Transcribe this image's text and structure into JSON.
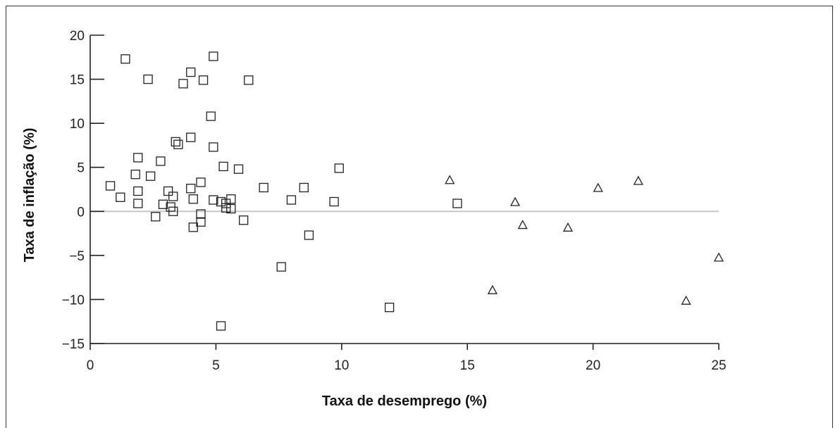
{
  "chart_data": {
    "type": "scatter",
    "title": "",
    "xlabel": "Taxa de desemprego (%)",
    "ylabel": "Taxa de inflação (%)",
    "xlim": [
      0,
      25
    ],
    "ylim": [
      -15,
      20
    ],
    "x_ticks": [
      0,
      5,
      10,
      15,
      20,
      25
    ],
    "x_tick_labels": [
      "0",
      "5",
      "10",
      "15",
      "20",
      "25"
    ],
    "y_ticks": [
      20,
      15,
      10,
      5,
      0,
      -5,
      -10,
      -15
    ],
    "y_tick_labels": [
      "20",
      "15",
      "10",
      "5",
      "0",
      "−5",
      "−10",
      "−15"
    ],
    "zero_line": true,
    "grid": false,
    "series": [
      {
        "marker": "square",
        "points": [
          [
            1.4,
            17.3
          ],
          [
            2.3,
            15.0
          ],
          [
            4.0,
            15.8
          ],
          [
            3.7,
            14.5
          ],
          [
            4.5,
            14.9
          ],
          [
            4.9,
            17.6
          ],
          [
            6.3,
            14.9
          ],
          [
            4.8,
            10.8
          ],
          [
            4.0,
            8.4
          ],
          [
            3.4,
            7.9
          ],
          [
            3.5,
            7.6
          ],
          [
            4.9,
            7.3
          ],
          [
            2.8,
            5.7
          ],
          [
            1.9,
            6.1
          ],
          [
            1.8,
            4.2
          ],
          [
            2.4,
            4.0
          ],
          [
            5.3,
            5.1
          ],
          [
            5.9,
            4.8
          ],
          [
            9.9,
            4.9
          ],
          [
            0.8,
            2.9
          ],
          [
            1.2,
            1.6
          ],
          [
            1.9,
            2.3
          ],
          [
            1.9,
            0.9
          ],
          [
            3.1,
            2.3
          ],
          [
            3.3,
            1.7
          ],
          [
            4.0,
            2.6
          ],
          [
            4.4,
            3.3
          ],
          [
            4.1,
            1.4
          ],
          [
            4.9,
            1.3
          ],
          [
            5.2,
            1.1
          ],
          [
            5.4,
            0.9
          ],
          [
            5.6,
            1.4
          ],
          [
            5.4,
            0.4
          ],
          [
            5.6,
            0.3
          ],
          [
            2.9,
            0.8
          ],
          [
            3.2,
            0.5
          ],
          [
            3.3,
            0.0
          ],
          [
            4.4,
            -0.3
          ],
          [
            2.6,
            -0.6
          ],
          [
            4.1,
            -1.8
          ],
          [
            4.4,
            -1.2
          ],
          [
            6.1,
            -1.0
          ],
          [
            6.9,
            2.7
          ],
          [
            8.0,
            1.3
          ],
          [
            8.5,
            2.7
          ],
          [
            9.7,
            1.1
          ],
          [
            14.6,
            0.9
          ],
          [
            8.7,
            -2.7
          ],
          [
            7.6,
            -6.3
          ],
          [
            11.9,
            -10.9
          ],
          [
            5.2,
            -13.0
          ]
        ]
      },
      {
        "marker": "triangle",
        "points": [
          [
            14.3,
            3.6
          ],
          [
            16.9,
            1.1
          ],
          [
            17.2,
            -1.5
          ],
          [
            19.0,
            -1.8
          ],
          [
            20.2,
            2.7
          ],
          [
            21.8,
            3.5
          ],
          [
            16.0,
            -8.9
          ],
          [
            23.7,
            -10.1
          ],
          [
            25.0,
            -5.2
          ]
        ]
      }
    ]
  }
}
